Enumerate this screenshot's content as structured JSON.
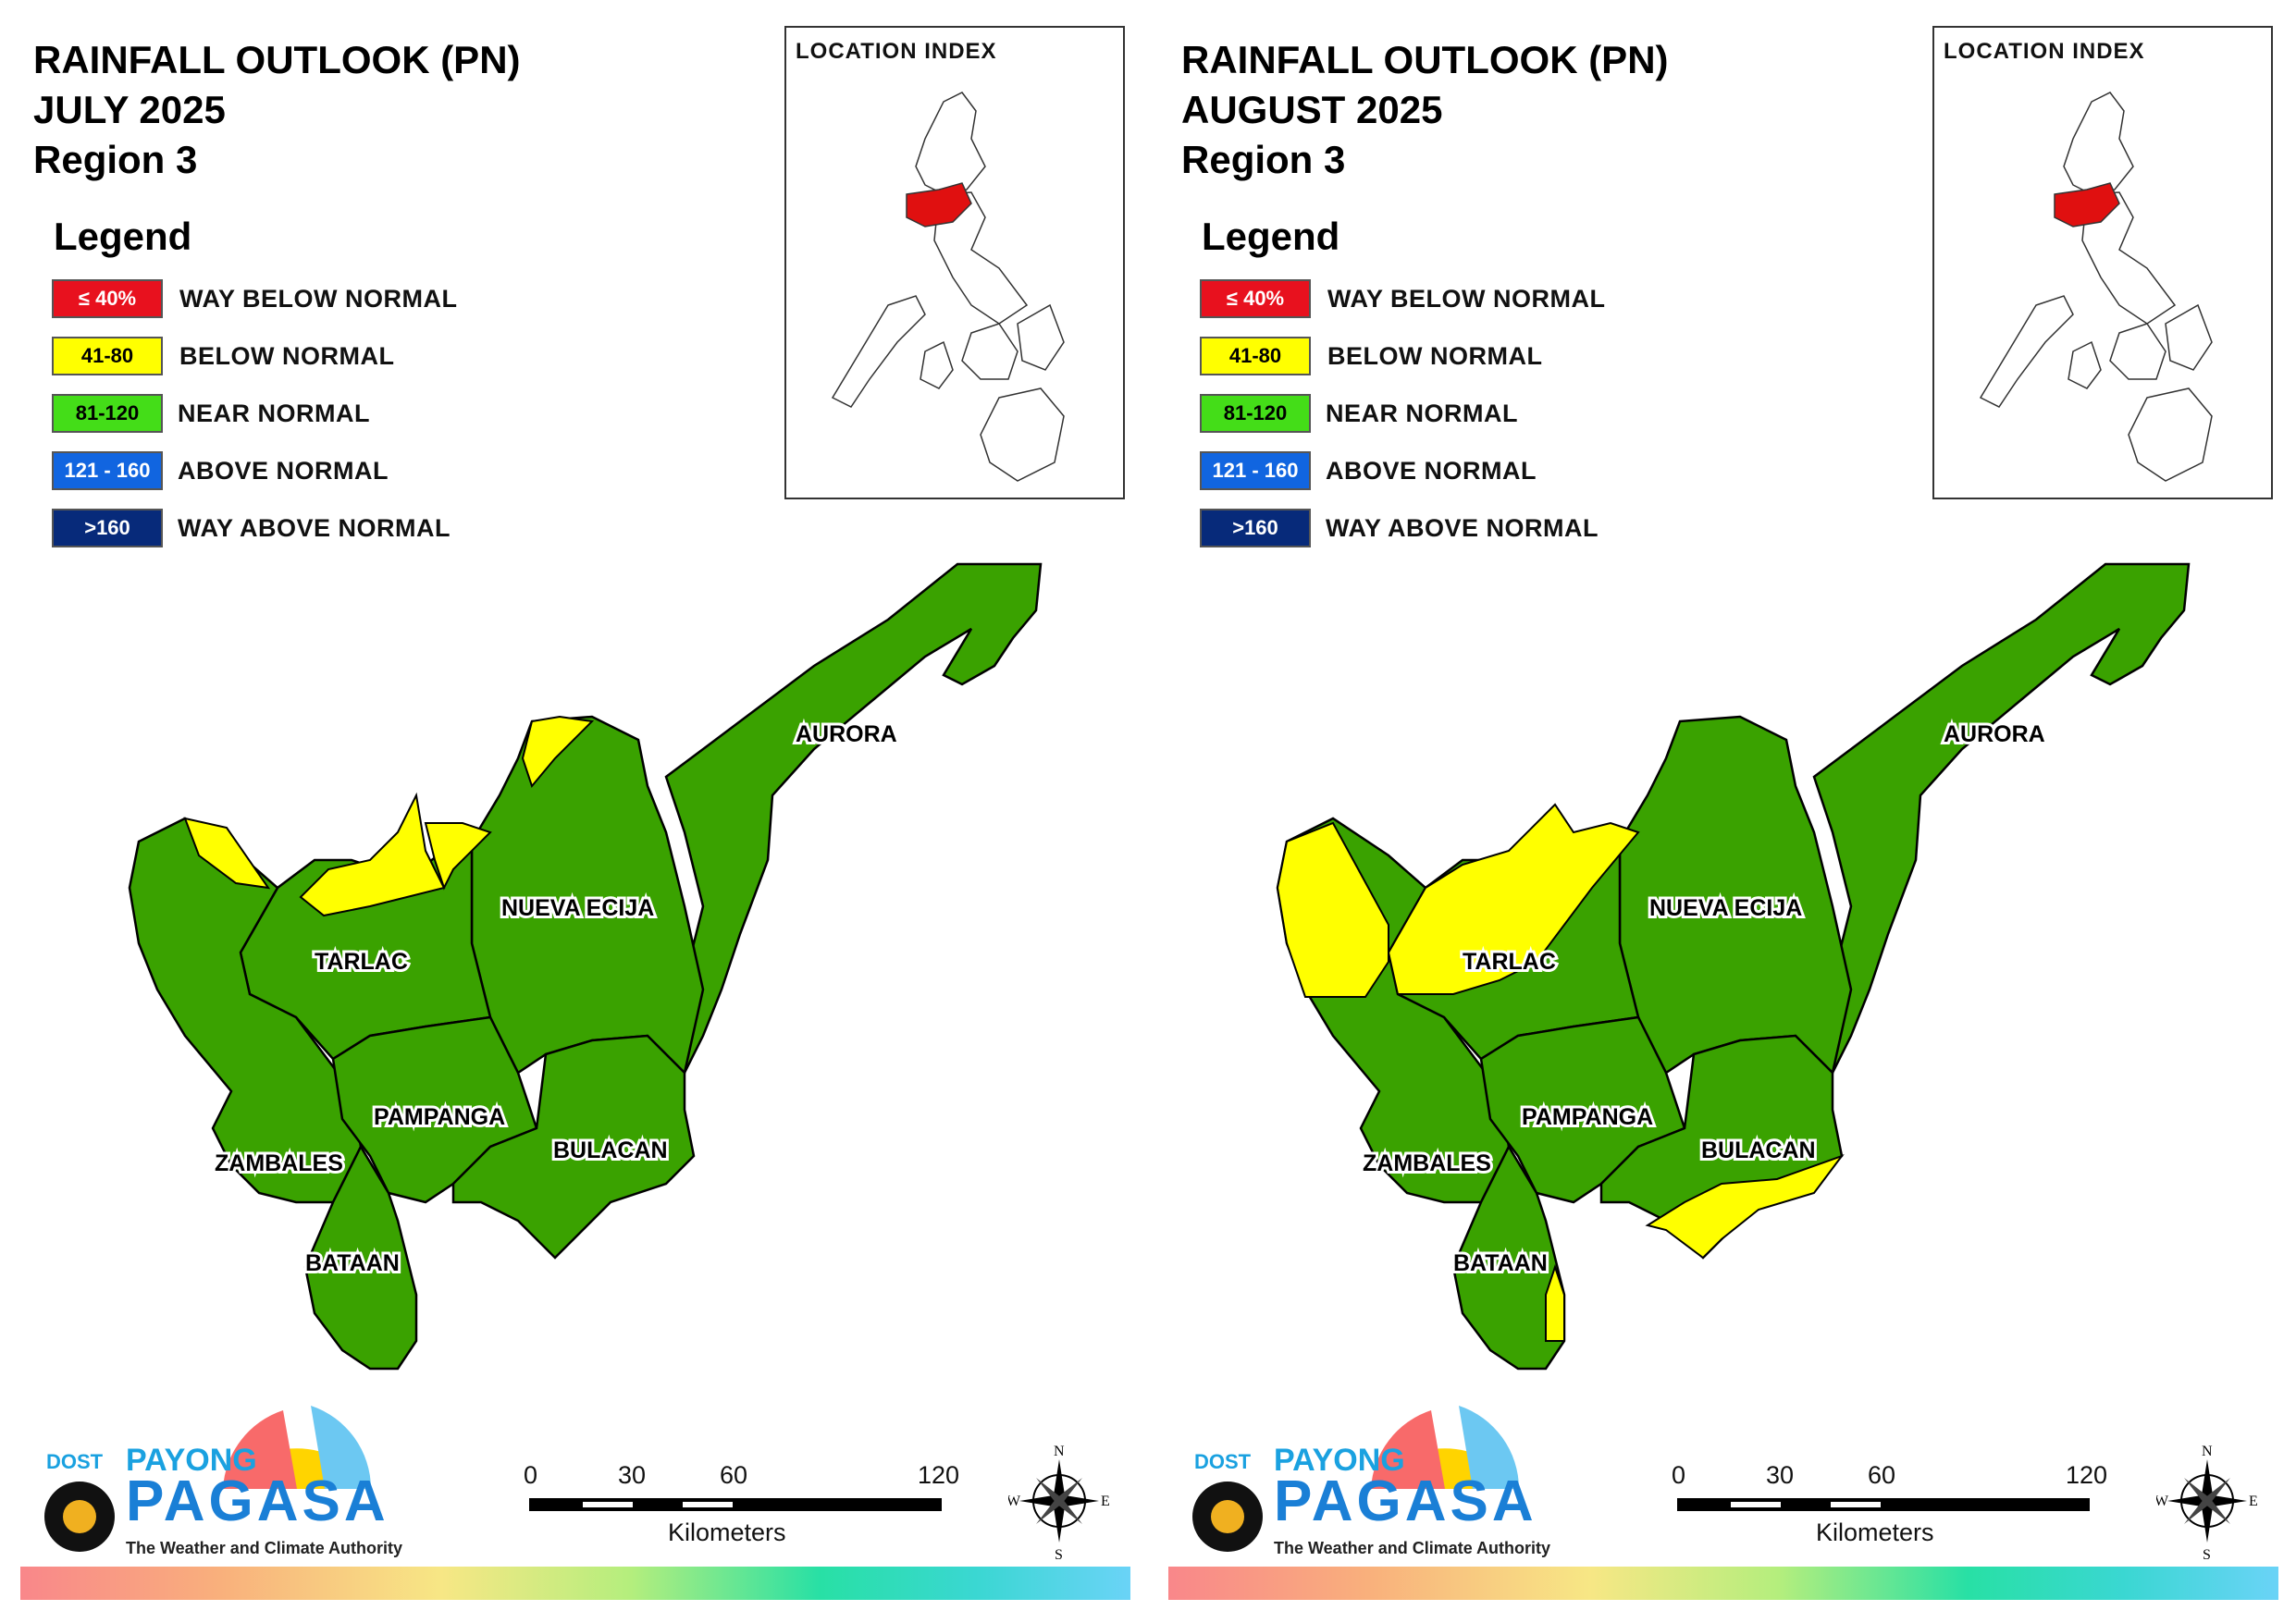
{
  "colors": {
    "way_below_normal": "#e8111e",
    "below_normal": "#ffff00",
    "near_normal": "#3aa200",
    "near_normal_legend": "#44dd18",
    "above_normal": "#1165e0",
    "way_above_normal": "#072a7a",
    "region_highlight": "#e01010"
  },
  "legend": {
    "title": "Legend",
    "items": [
      {
        "range": "≤ 40%",
        "label": "WAY BELOW NORMAL",
        "color": "#e8111e",
        "text_color": "#ffffff"
      },
      {
        "range": "41-80",
        "label": "BELOW NORMAL",
        "color": "#ffff00",
        "text_color": "#000000"
      },
      {
        "range": "81-120",
        "label": "NEAR NORMAL",
        "color": "#44dd18",
        "text_color": "#000000"
      },
      {
        "range": "121 - 160",
        "label": "ABOVE NORMAL",
        "color": "#1165e0",
        "text_color": "#ffffff"
      },
      {
        "range": ">160",
        "label": "WAY ABOVE NORMAL",
        "color": "#072a7a",
        "text_color": "#ffffff"
      }
    ]
  },
  "location_index_title": "LOCATION INDEX",
  "provinces": {
    "aurora": "AURORA",
    "nueva_ecija": "NUEVA ECIJA",
    "tarlac": "TARLAC",
    "pampanga": "PAMPANGA",
    "bulacan": "BULACAN",
    "zambales": "ZAMBALES",
    "bataan": "BATAAN"
  },
  "maps": [
    {
      "title_line1": "RAINFALL OUTLOOK (PN)",
      "month": "JULY 2025",
      "region": "Region 3"
    },
    {
      "title_line1": "RAINFALL OUTLOOK (PN)",
      "month": "AUGUST 2025",
      "region": "Region 3"
    }
  ],
  "scale_bar": {
    "ticks": [
      "0",
      "30",
      "60",
      "120"
    ],
    "unit": "Kilometers"
  },
  "compass": {
    "n": "N",
    "e": "E",
    "s": "S",
    "w": "W"
  },
  "logo": {
    "dost": "DOST",
    "payong": "PAYONG",
    "pagasa": "PAGASA",
    "tagline": "The Weather and Climate Authority"
  }
}
